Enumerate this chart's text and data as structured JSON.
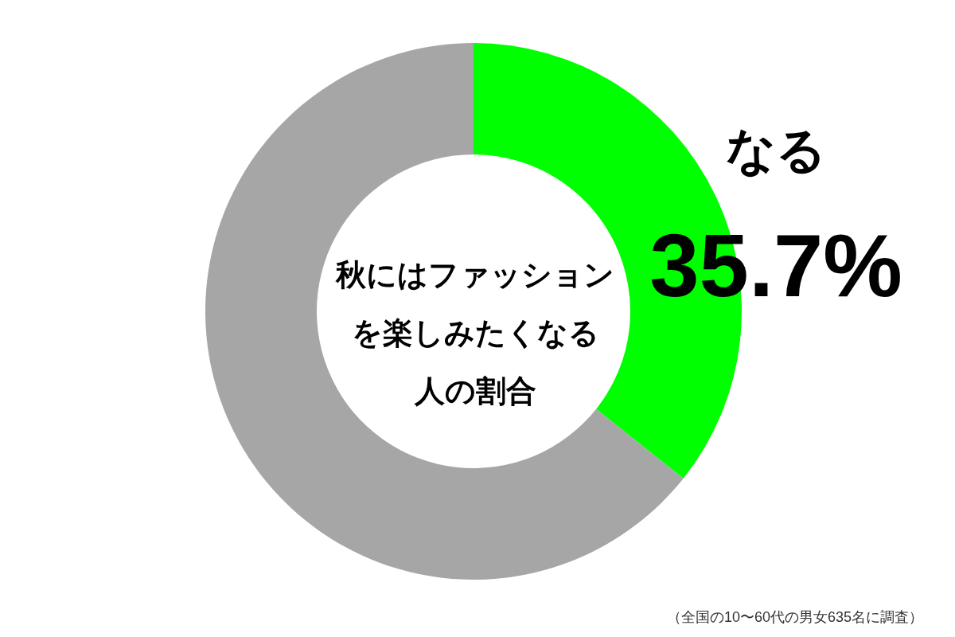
{
  "chart_data": {
    "type": "donut",
    "title": "秋にはファッションを楽しみたくなる人の割合",
    "categories": [
      "なる",
      null
    ],
    "values": [
      35.7,
      64.3
    ],
    "colors": [
      "#00ff00",
      "#a6a6a6"
    ],
    "value_labels": [
      "35.7%",
      null
    ],
    "annotations": [
      "（全国の10〜60代の男女635名に調査）"
    ]
  }
}
